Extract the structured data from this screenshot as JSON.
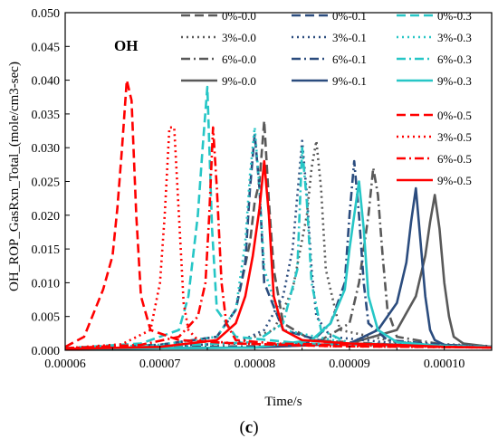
{
  "chart_data": {
    "type": "line",
    "title": "",
    "annotation": "OH",
    "xlabel": "Time/s",
    "ylabel": "OH_ROP_GasRxn_Total_(mole/cm3-sec)",
    "xlim": [
      6e-05,
      0.000105
    ],
    "ylim": [
      0,
      0.05
    ],
    "x_ticks": [
      "0.00006",
      "0.00007",
      "0.00008",
      "0.00009",
      "0.00010"
    ],
    "y_ticks": [
      "0.000",
      "0.005",
      "0.010",
      "0.015",
      "0.020",
      "0.025",
      "0.030",
      "0.035",
      "0.040",
      "0.045",
      "0.050"
    ],
    "grid": false,
    "legend": "top-right",
    "series": [
      {
        "name": "0%-0.0",
        "color": "#595959",
        "dash": "dash",
        "x": [
          6e-05,
          7e-05,
          7.6e-05,
          7.8e-05,
          7.95e-05,
          8e-05,
          8.05e-05,
          8.1e-05,
          8.15e-05,
          8.2e-05,
          8.3e-05,
          8.6e-05,
          9.5e-05,
          0.000105
        ],
        "y": [
          0.0003,
          0.0008,
          0.002,
          0.006,
          0.016,
          0.022,
          0.025,
          0.034,
          0.022,
          0.012,
          0.004,
          0.0015,
          0.0008,
          0.0005
        ]
      },
      {
        "name": "3%-0.0",
        "color": "#595959",
        "dash": "dot",
        "x": [
          6e-05,
          7e-05,
          7.8e-05,
          8.2e-05,
          8.4e-05,
          8.55e-05,
          8.6e-05,
          8.65e-05,
          8.7e-05,
          8.75e-05,
          8.9e-05,
          9.5e-05,
          0.000105
        ],
        "y": [
          0.0003,
          0.0006,
          0.001,
          0.003,
          0.009,
          0.02,
          0.027,
          0.031,
          0.024,
          0.012,
          0.003,
          0.0012,
          0.0006
        ]
      },
      {
        "name": "6%-0.0",
        "color": "#595959",
        "dash": "dashdot",
        "x": [
          6e-05,
          8e-05,
          8.7e-05,
          9e-05,
          9.1e-05,
          9.2e-05,
          9.25e-05,
          9.3e-05,
          9.35e-05,
          9.4e-05,
          9.5e-05,
          0.0001,
          0.000105
        ],
        "y": [
          0.0003,
          0.0006,
          0.0015,
          0.004,
          0.01,
          0.02,
          0.027,
          0.023,
          0.014,
          0.006,
          0.002,
          0.0008,
          0.0005
        ]
      },
      {
        "name": "9%-0.0",
        "color": "#595959",
        "dash": "solid",
        "x": [
          6e-05,
          8e-05,
          9e-05,
          9.5e-05,
          9.7e-05,
          9.8e-05,
          9.85e-05,
          9.9e-05,
          9.95e-05,
          0.0001,
          0.0001005,
          0.000101,
          0.000102,
          0.000105
        ],
        "y": [
          0.0002,
          0.0004,
          0.001,
          0.003,
          0.008,
          0.014,
          0.019,
          0.023,
          0.018,
          0.01,
          0.005,
          0.002,
          0.001,
          0.0005
        ]
      },
      {
        "name": "0%-0.1",
        "color": "#2b4c7e",
        "dash": "dash",
        "x": [
          6e-05,
          7e-05,
          7.6e-05,
          7.8e-05,
          7.9e-05,
          7.95e-05,
          8e-05,
          8.05e-05,
          8.1e-05,
          8.3e-05,
          8.8e-05,
          9.5e-05,
          0.000105
        ],
        "y": [
          0.0003,
          0.0008,
          0.002,
          0.006,
          0.013,
          0.024,
          0.032,
          0.024,
          0.01,
          0.003,
          0.001,
          0.0008,
          0.0005
        ]
      },
      {
        "name": "3%-0.1",
        "color": "#2b4c7e",
        "dash": "dot",
        "x": [
          6e-05,
          7e-05,
          7.8e-05,
          8.1e-05,
          8.3e-05,
          8.4e-05,
          8.5e-05,
          8.55e-05,
          8.6e-05,
          8.65e-05,
          8.8e-05,
          9.5e-05,
          0.000105
        ],
        "y": [
          0.0003,
          0.0006,
          0.001,
          0.003,
          0.008,
          0.015,
          0.031,
          0.023,
          0.012,
          0.005,
          0.002,
          0.001,
          0.0005
        ]
      },
      {
        "name": "6%-0.1",
        "color": "#2b4c7e",
        "dash": "dashdot",
        "x": [
          6e-05,
          8e-05,
          8.6e-05,
          8.8e-05,
          8.95e-05,
          9e-05,
          9.05e-05,
          9.1e-05,
          9.15e-05,
          9.2e-05,
          9.4e-05,
          0.0001,
          0.000105
        ],
        "y": [
          0.0003,
          0.0005,
          0.0012,
          0.004,
          0.01,
          0.02,
          0.028,
          0.02,
          0.01,
          0.004,
          0.0015,
          0.0008,
          0.0005
        ]
      },
      {
        "name": "9%-0.1",
        "color": "#2b4c7e",
        "dash": "solid",
        "x": [
          6e-05,
          8e-05,
          9e-05,
          9.3e-05,
          9.5e-05,
          9.6e-05,
          9.65e-05,
          9.7e-05,
          9.75e-05,
          9.8e-05,
          9.85e-05,
          9.9e-05,
          0.0001,
          0.000105
        ],
        "y": [
          0.0002,
          0.0004,
          0.001,
          0.003,
          0.007,
          0.013,
          0.019,
          0.024,
          0.016,
          0.008,
          0.003,
          0.0015,
          0.0008,
          0.0005
        ]
      },
      {
        "name": "0%-0.3",
        "color": "#26c6c6",
        "dash": "dash",
        "x": [
          6e-05,
          6.8e-05,
          7.2e-05,
          7.3e-05,
          7.4e-05,
          7.45e-05,
          7.5e-05,
          7.55e-05,
          7.6e-05,
          7.8e-05,
          8.5e-05,
          9.5e-05,
          0.000105
        ],
        "y": [
          0.0003,
          0.001,
          0.003,
          0.008,
          0.02,
          0.03,
          0.039,
          0.018,
          0.006,
          0.002,
          0.001,
          0.0007,
          0.0005
        ]
      },
      {
        "name": "3%-0.3",
        "color": "#26c6c6",
        "dash": "dot",
        "x": [
          6e-05,
          7e-05,
          7.6e-05,
          7.8e-05,
          7.9e-05,
          7.95e-05,
          8e-05,
          8.05e-05,
          8.1e-05,
          8.3e-05,
          9e-05,
          0.000105
        ],
        "y": [
          0.0003,
          0.0008,
          0.002,
          0.006,
          0.016,
          0.026,
          0.033,
          0.024,
          0.012,
          0.003,
          0.001,
          0.0005
        ]
      },
      {
        "name": "6%-0.3",
        "color": "#26c6c6",
        "dash": "dashdot",
        "x": [
          6e-05,
          7e-05,
          8e-05,
          8.3e-05,
          8.45e-05,
          8.5e-05,
          8.55e-05,
          8.6e-05,
          8.7e-05,
          9e-05,
          0.000105
        ],
        "y": [
          0.0003,
          0.0006,
          0.0012,
          0.004,
          0.012,
          0.03,
          0.022,
          0.01,
          0.003,
          0.001,
          0.0005
        ]
      },
      {
        "name": "9%-0.3",
        "color": "#26c6c6",
        "dash": "solid",
        "x": [
          6e-05,
          8e-05,
          8.6e-05,
          8.8e-05,
          8.95e-05,
          9e-05,
          9.05e-05,
          9.1e-05,
          9.15e-05,
          9.2e-05,
          9.3e-05,
          9.5e-05,
          0.0001,
          0.000105
        ],
        "y": [
          0.0002,
          0.0004,
          0.0015,
          0.004,
          0.009,
          0.015,
          0.02,
          0.025,
          0.018,
          0.008,
          0.003,
          0.0012,
          0.0006,
          0.0004
        ]
      },
      {
        "name": "0%-0.5",
        "color": "#ff0000",
        "dash": "dash",
        "x": [
          6e-05,
          6.2e-05,
          6.4e-05,
          6.5e-05,
          6.55e-05,
          6.6e-05,
          6.65e-05,
          6.7e-05,
          6.75e-05,
          6.8e-05,
          6.9e-05,
          7.2e-05,
          7.8e-05,
          8.8e-05,
          0.000105
        ],
        "y": [
          0.0005,
          0.002,
          0.009,
          0.014,
          0.021,
          0.03,
          0.04,
          0.037,
          0.02,
          0.008,
          0.003,
          0.0015,
          0.001,
          0.0006,
          0.0004
        ]
      },
      {
        "name": "3%-0.5",
        "color": "#ff0000",
        "dash": "dot",
        "x": [
          6e-05,
          6.6e-05,
          6.9e-05,
          7e-05,
          7.05e-05,
          7.1e-05,
          7.15e-05,
          7.2e-05,
          7.25e-05,
          7.3e-05,
          7.4e-05,
          7.8e-05,
          8.8e-05,
          0.000105
        ],
        "y": [
          0.0003,
          0.0009,
          0.003,
          0.01,
          0.02,
          0.033,
          0.033,
          0.02,
          0.007,
          0.003,
          0.0015,
          0.001,
          0.0006,
          0.0004
        ]
      },
      {
        "name": "6%-0.5",
        "color": "#ff0000",
        "dash": "dashdot",
        "x": [
          6e-05,
          6.8e-05,
          7.2e-05,
          7.4e-05,
          7.48e-05,
          7.52e-05,
          7.56e-05,
          7.6e-05,
          7.65e-05,
          7.7e-05,
          7.8e-05,
          8.2e-05,
          9.5e-05,
          0.000105
        ],
        "y": [
          0.0003,
          0.0008,
          0.002,
          0.005,
          0.01,
          0.02,
          0.033,
          0.024,
          0.01,
          0.004,
          0.0015,
          0.001,
          0.0006,
          0.0004
        ]
      },
      {
        "name": "9%-0.5",
        "color": "#ff0000",
        "dash": "solid",
        "x": [
          6e-05,
          7e-05,
          7.6e-05,
          7.8e-05,
          7.9e-05,
          7.98e-05,
          8.05e-05,
          8.1e-05,
          8.15e-05,
          8.2e-05,
          8.3e-05,
          8.5e-05,
          9e-05,
          9.5e-05,
          0.0001,
          0.000105
        ],
        "y": [
          0.0002,
          0.0005,
          0.0015,
          0.004,
          0.008,
          0.014,
          0.021,
          0.028,
          0.02,
          0.008,
          0.003,
          0.0015,
          0.001,
          0.0008,
          0.0005,
          0.0004
        ]
      }
    ]
  },
  "caption": {
    "open": "(",
    "letter": "c",
    "close": ")"
  }
}
